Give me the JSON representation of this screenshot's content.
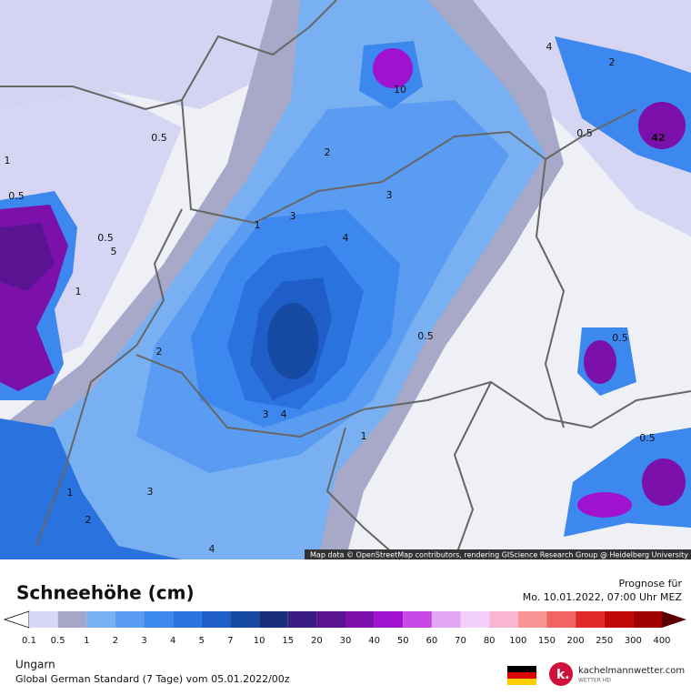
{
  "map": {
    "labels": [
      "0.5",
      "2",
      "3",
      "1",
      "3",
      "4",
      "0.5",
      "2",
      "3",
      "4",
      "1",
      "1",
      "3",
      "4",
      "0.5",
      "42",
      "0.5",
      "0.5",
      "1",
      "10",
      "4",
      "2",
      "0.5",
      "0.5",
      "2",
      "1",
      "5"
    ],
    "attribution": "Map data © OpenStreetMap contributors, rendering GIScience Research Group @ Heidelberg University"
  },
  "header": {
    "title": "Schneehöhe (cm)",
    "forecast_label": "Prognose für",
    "forecast_time": "Mo. 10.01.2022, 07:00 Uhr MEZ"
  },
  "legend": {
    "levels": [
      0.1,
      0.5,
      1,
      2,
      3,
      4,
      5,
      7,
      10,
      15,
      20,
      30,
      40,
      50,
      60,
      70,
      80,
      100,
      150,
      200,
      250,
      300,
      400
    ],
    "colors": [
      "#ffffff",
      "#d8d8f6",
      "#a6a6c6",
      "#78b0f2",
      "#5a9cf2",
      "#3c88ee",
      "#2a72de",
      "#1f5ec6",
      "#174aa2",
      "#1a2f7a",
      "#3a1c82",
      "#5a1492",
      "#7c10aa",
      "#a012d0",
      "#c848e6",
      "#e2a6f4",
      "#f2d0fa",
      "#f8b6d2",
      "#f89494",
      "#f06464",
      "#e02828",
      "#c20808",
      "#a00000",
      "#800000",
      "#5a0000"
    ]
  },
  "footer": {
    "region": "Ungarn",
    "model": "Global German Standard (7 Tage) vom 05.01.2022/00z",
    "brand": "kachelmannwetter.com",
    "brand_sub": "WETTER HD"
  }
}
